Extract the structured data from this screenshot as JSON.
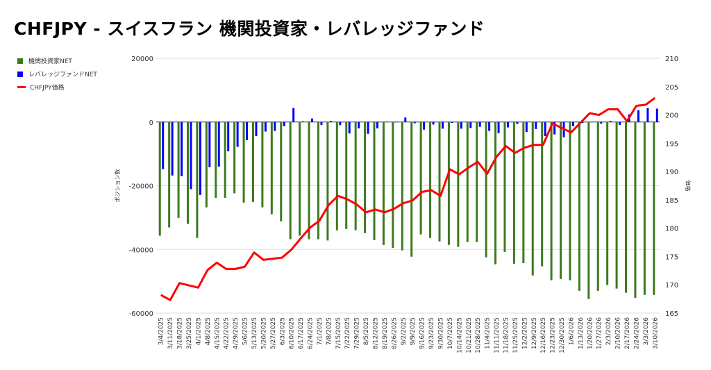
{
  "chart_data": {
    "type": "bar",
    "title": "CHFJPY - スイスフラン 機関投資家・レバレッジファンド",
    "ylabel": "ポジション数",
    "y2label": "価格",
    "ylim": [
      -60000,
      20000
    ],
    "y2lim": [
      165,
      210
    ],
    "yticks": [
      "20000",
      "0",
      "-20000",
      "-40000",
      "-60000"
    ],
    "y2ticks": [
      "210",
      "205",
      "200",
      "195",
      "190",
      "185",
      "180",
      "175",
      "170",
      "165"
    ],
    "legend_position": "top-left",
    "categories": [
      "3/4/2025",
      "3/11/2025",
      "3/18/2025",
      "3/25/2025",
      "4/1/2025",
      "4/8/2025",
      "4/15/2025",
      "4/22/2025",
      "4/29/2025",
      "5/6/2025",
      "5/13/2025",
      "5/20/2025",
      "5/27/2025",
      "6/3/2025",
      "6/10/2025",
      "6/17/2025",
      "6/24/2025",
      "7/1/2025",
      "7/8/2025",
      "7/15/2025",
      "7/22/2025",
      "7/29/2025",
      "8/5/2025",
      "8/12/2025",
      "8/19/2025",
      "8/26/2025",
      "9/2/2025",
      "9/9/2025",
      "9/16/2025",
      "9/23/2025",
      "9/30/2025",
      "10/7/2025",
      "10/14/2025",
      "10/21/2025",
      "10/28/2025",
      "11/4/2025",
      "11/11/2025",
      "11/18/2025",
      "11/25/2025",
      "12/2/2025",
      "12/9/2025",
      "12/16/2025",
      "12/23/2025",
      "12/30/2025",
      "1/6/2026",
      "1/13/2026",
      "1/20/2026",
      "1/27/2026",
      "2/3/2026",
      "2/10/2026",
      "2/17/2026",
      "2/24/2026",
      "3/3/2026",
      "3/10/2026"
    ],
    "series": [
      {
        "name": "機関投資家NET",
        "type": "bar",
        "axis": "left",
        "color": "#3d7a1e",
        "values": [
          -35700,
          -33100,
          -30100,
          -32000,
          -36400,
          -26800,
          -23800,
          -23800,
          -22400,
          -25300,
          -25100,
          -26800,
          -29000,
          -31200,
          -36800,
          -35700,
          -36800,
          -36800,
          -37200,
          -34000,
          -33600,
          -34000,
          -34900,
          -37100,
          -38600,
          -39500,
          -40300,
          -42300,
          -35300,
          -36400,
          -37500,
          -38600,
          -39200,
          -37700,
          -37700,
          -42500,
          -44700,
          -40800,
          -44500,
          -44300,
          -48200,
          -45300,
          -49700,
          -49300,
          -49700,
          -53000,
          -55600,
          -53000,
          -51200,
          -52300,
          -53600,
          -55200,
          -54300,
          -54300
        ]
      },
      {
        "name": "レバレッジファンドNET",
        "type": "bar",
        "axis": "left",
        "color": "#0000ff",
        "values": [
          -14800,
          -16800,
          -17000,
          -21100,
          -22900,
          -14200,
          -14000,
          -9200,
          -7800,
          -5700,
          -4400,
          -3000,
          -2800,
          -1300,
          4400,
          200,
          1100,
          -900,
          300,
          -1000,
          -3600,
          -2000,
          -3700,
          -2000,
          0,
          0,
          1400,
          -400,
          -2400,
          -800,
          -2100,
          -300,
          -2100,
          -1900,
          -1500,
          -2800,
          -3500,
          -1700,
          -600,
          -3100,
          -2200,
          -4400,
          -3900,
          -4800,
          -1300,
          -300,
          0,
          -500,
          300,
          -900,
          2400,
          3700,
          4400,
          4200
        ]
      },
      {
        "name": "CHFJPY価格",
        "type": "line",
        "axis": "right",
        "color": "#ff0000",
        "values": [
          168.2,
          167.3,
          170.3,
          169.9,
          169.5,
          172.6,
          173.9,
          172.8,
          172.8,
          173.2,
          175.7,
          174.4,
          174.6,
          174.8,
          176.2,
          178.2,
          180.1,
          181.3,
          184.1,
          185.7,
          185.1,
          184.2,
          182.8,
          183.3,
          182.8,
          183.4,
          184.4,
          184.9,
          186.4,
          186.7,
          185.7,
          190.4,
          189.5,
          190.7,
          191.7,
          189.6,
          192.6,
          194.5,
          193.3,
          194.2,
          194.7,
          194.7,
          198.5,
          197.7,
          196.9,
          198.6,
          200.3,
          200.0,
          201.0,
          201.0,
          198.9,
          201.6,
          201.8,
          203.0
        ]
      }
    ]
  }
}
